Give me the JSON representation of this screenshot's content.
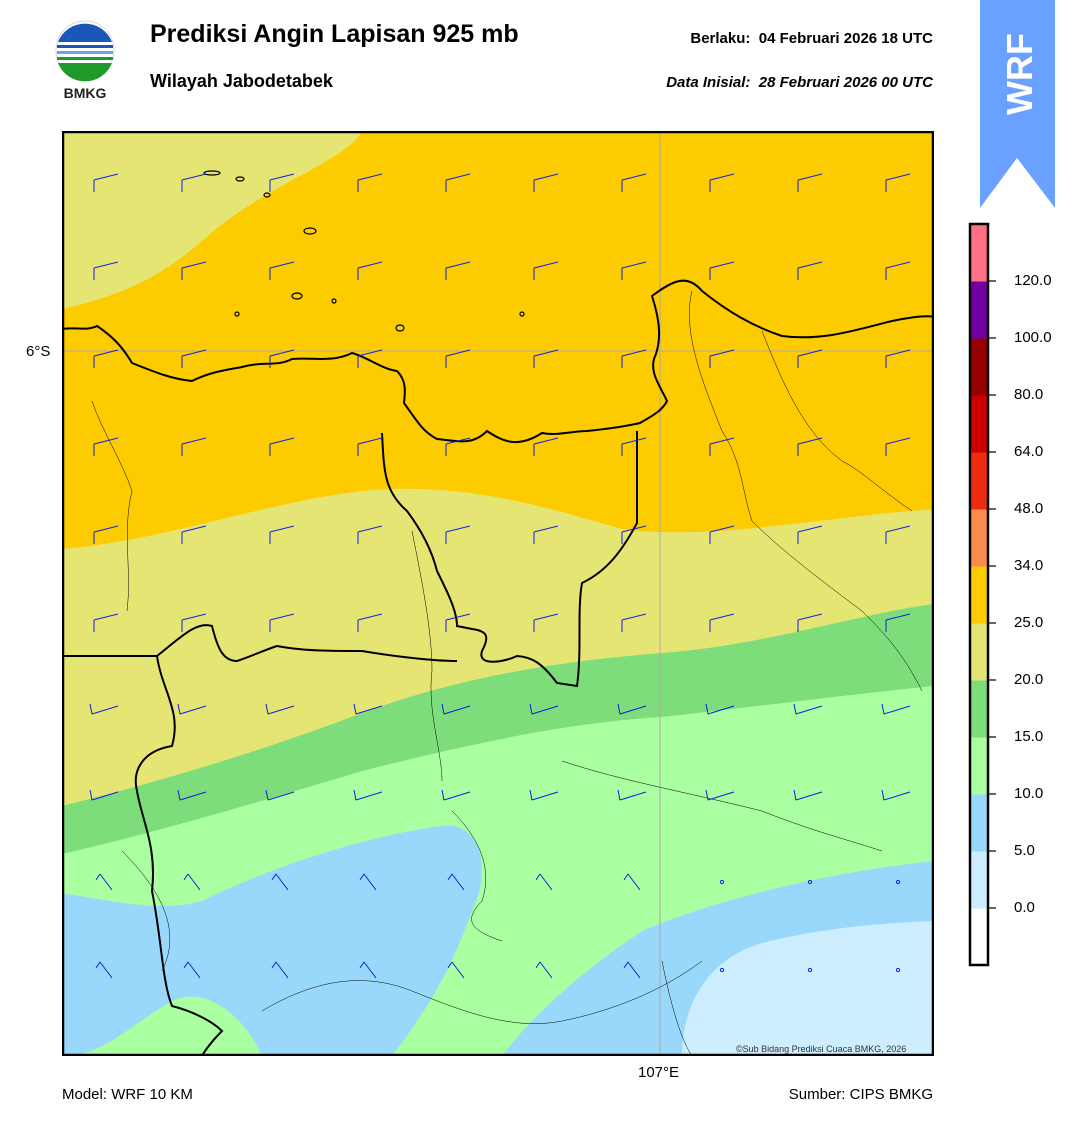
{
  "header": {
    "logo_text": "BMKG",
    "title": "Prediksi Angin Lapisan 925 mb",
    "subtitle": "Wilayah Jabodetabek",
    "valid_label": "Berlaku:",
    "valid_value": "04 Februari 2026 18 UTC",
    "init_label": "Data Inisial:",
    "init_value": "28 Februari 2026 00 UTC",
    "model_badge": "WRF"
  },
  "map": {
    "lat_tick": "6°S",
    "lon_tick": "107°E",
    "copyright": "©Sub Bidang Prediksi Cuaca BMKG, 2026",
    "wind_barb_color": "#1020e0",
    "coast_color": "#000000"
  },
  "colorbar": {
    "ticks": [
      "0.0",
      "5.0",
      "10.0",
      "15.0",
      "20.0",
      "25.0",
      "34.0",
      "48.0",
      "64.0",
      "80.0",
      "100.0",
      "120.0"
    ],
    "colors": [
      "#ffffff",
      "#cceeff",
      "#9ad8fb",
      "#aaffa0",
      "#7ddd7b",
      "#e5e574",
      "#fdcc00",
      "#fb8c4c",
      "#ee2d10",
      "#cc0000",
      "#990000",
      "#7000a0",
      "#ff6f86"
    ]
  },
  "footer": {
    "model": "Model: WRF 10 KM",
    "source": "Sumber: CIPS BMKG"
  }
}
